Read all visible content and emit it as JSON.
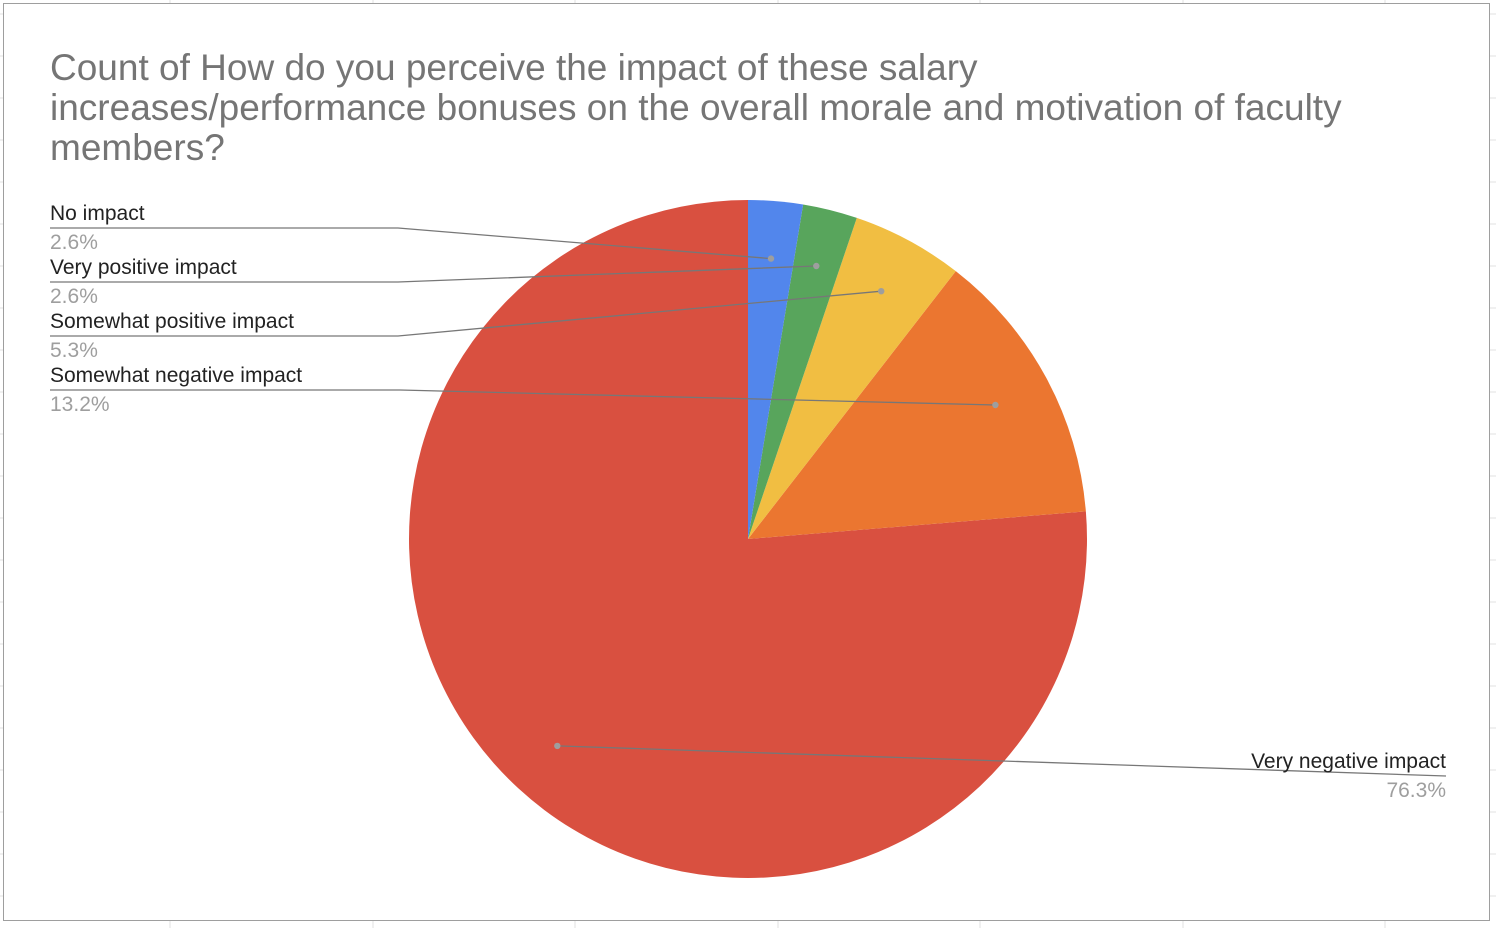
{
  "chart_data": {
    "type": "pie",
    "title": "Count of How do you perceive the impact of these salary increases/performance bonuses on the overall morale and motivation of faculty members?",
    "slices": [
      {
        "label": "Very negative impact",
        "value": 76.3,
        "value_label": "76.3%",
        "color": "#d95040"
      },
      {
        "label": "Somewhat negative impact",
        "value": 13.2,
        "value_label": "13.2%",
        "color": "#eb7630"
      },
      {
        "label": "Somewhat positive impact",
        "value": 5.3,
        "value_label": "5.3%",
        "color": "#f1be42"
      },
      {
        "label": "Very positive impact",
        "value": 2.6,
        "value_label": "2.6%",
        "color": "#58a55c"
      },
      {
        "label": "No impact",
        "value": 2.6,
        "value_label": "2.6%",
        "color": "#5286ec"
      }
    ],
    "legend": "none",
    "label_style": "callout lines with label and percentage"
  }
}
